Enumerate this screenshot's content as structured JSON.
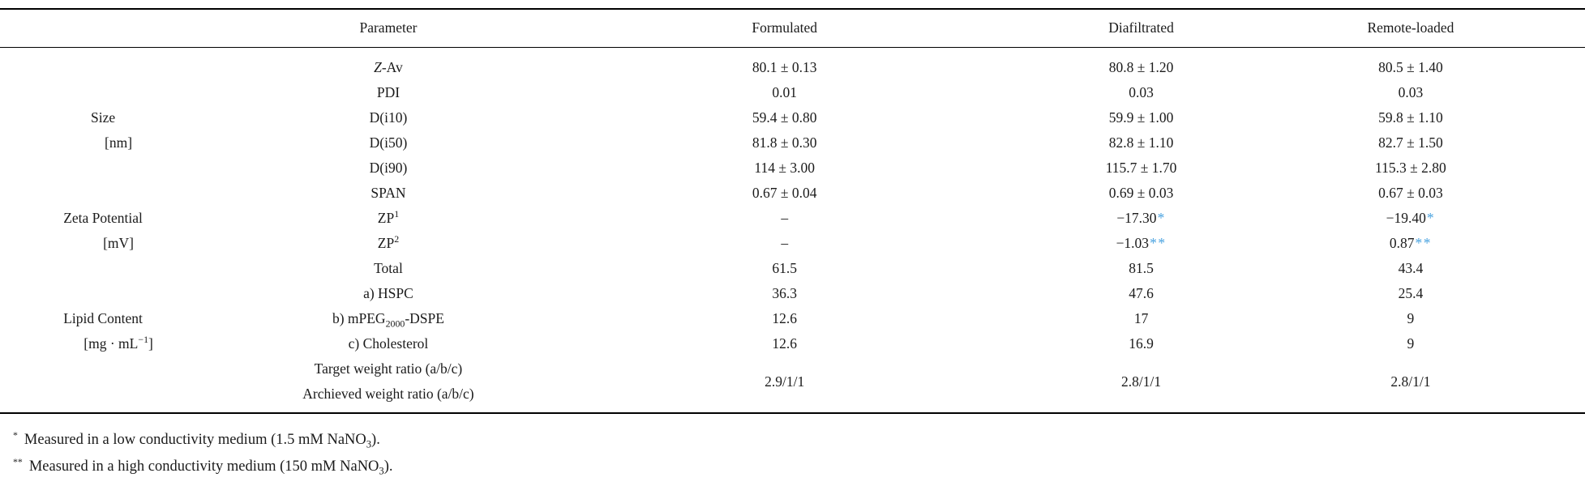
{
  "colors": {
    "note_color": "#4aa3e0",
    "text_color": "#1b1b1b"
  },
  "table": {
    "headers": {
      "group": "",
      "parameter": "Parameter",
      "cols": [
        "Formulated",
        "Diafiltrated",
        "Remote-loaded"
      ]
    },
    "rows": [
      {
        "group": "",
        "param": "*Z*-Av",
        "values": [
          "80.1 ± 0.13",
          "80.8 ± 1.20",
          "80.5 ± 1.40"
        ]
      },
      {
        "group": "",
        "param": "PDI",
        "values": [
          "0.01",
          "0.03",
          "0.03"
        ]
      },
      {
        "group": "Size",
        "param": "D(i10)",
        "values": [
          "59.4 ± 0.80",
          "59.9 ± 1.00",
          "59.8 ± 1.10"
        ]
      },
      {
        "group": "[nm]",
        "param": "D(i50)",
        "values": [
          "81.8 ± 0.30",
          "82.8 ± 1.10",
          "82.7 ± 1.50"
        ]
      },
      {
        "group": "",
        "param": "D(i90)",
        "values": [
          "114 ± 3.00",
          "115.7 ± 1.70",
          "115.3 ± 2.80"
        ]
      },
      {
        "group": "",
        "param": "SPAN",
        "values": [
          "0.67 ± 0.04",
          "0.69 ± 0.03",
          "0.67 ± 0.03"
        ]
      },
      {
        "group": "Zeta Potential",
        "param": "ZP^1^",
        "values": [
          "–",
          {
            "text": "−17.30",
            "note": "*"
          },
          {
            "text": "−19.40",
            "note": "*"
          }
        ]
      },
      {
        "group": "[mV]",
        "param": "ZP^2^",
        "values": [
          "–",
          {
            "text": "−1.03",
            "note": "**"
          },
          {
            "text": "0.87",
            "note": "**"
          }
        ]
      },
      {
        "group": "",
        "param": "Total",
        "values": [
          "61.5",
          "81.5",
          "43.4"
        ]
      },
      {
        "group": "",
        "param": "a) HSPC",
        "values": [
          "36.3",
          "47.6",
          "25.4"
        ]
      },
      {
        "group": "Lipid Content",
        "param": "b) mPEG~2000~-DSPE",
        "values": [
          "12.6",
          "17",
          "9"
        ]
      },
      {
        "group": "[mg · mL^−1^]",
        "param": "c) Cholesterol",
        "values": [
          "12.6",
          "16.9",
          "9"
        ]
      },
      {
        "group": "",
        "param_lines": [
          "Target weight ratio (a/b/c)",
          "Archieved weight ratio (a/b/c)"
        ],
        "values": [
          "2.9/1/1",
          "2.8/1/1",
          "2.8/1/1"
        ]
      }
    ]
  },
  "footnotes": [
    {
      "marker": "*",
      "text": "Measured in a low conductivity medium (1.5 mM NaNO~3~)."
    },
    {
      "marker": "**",
      "text": "Measured in a high conductivity medium (150 mM NaNO~3~)."
    }
  ]
}
